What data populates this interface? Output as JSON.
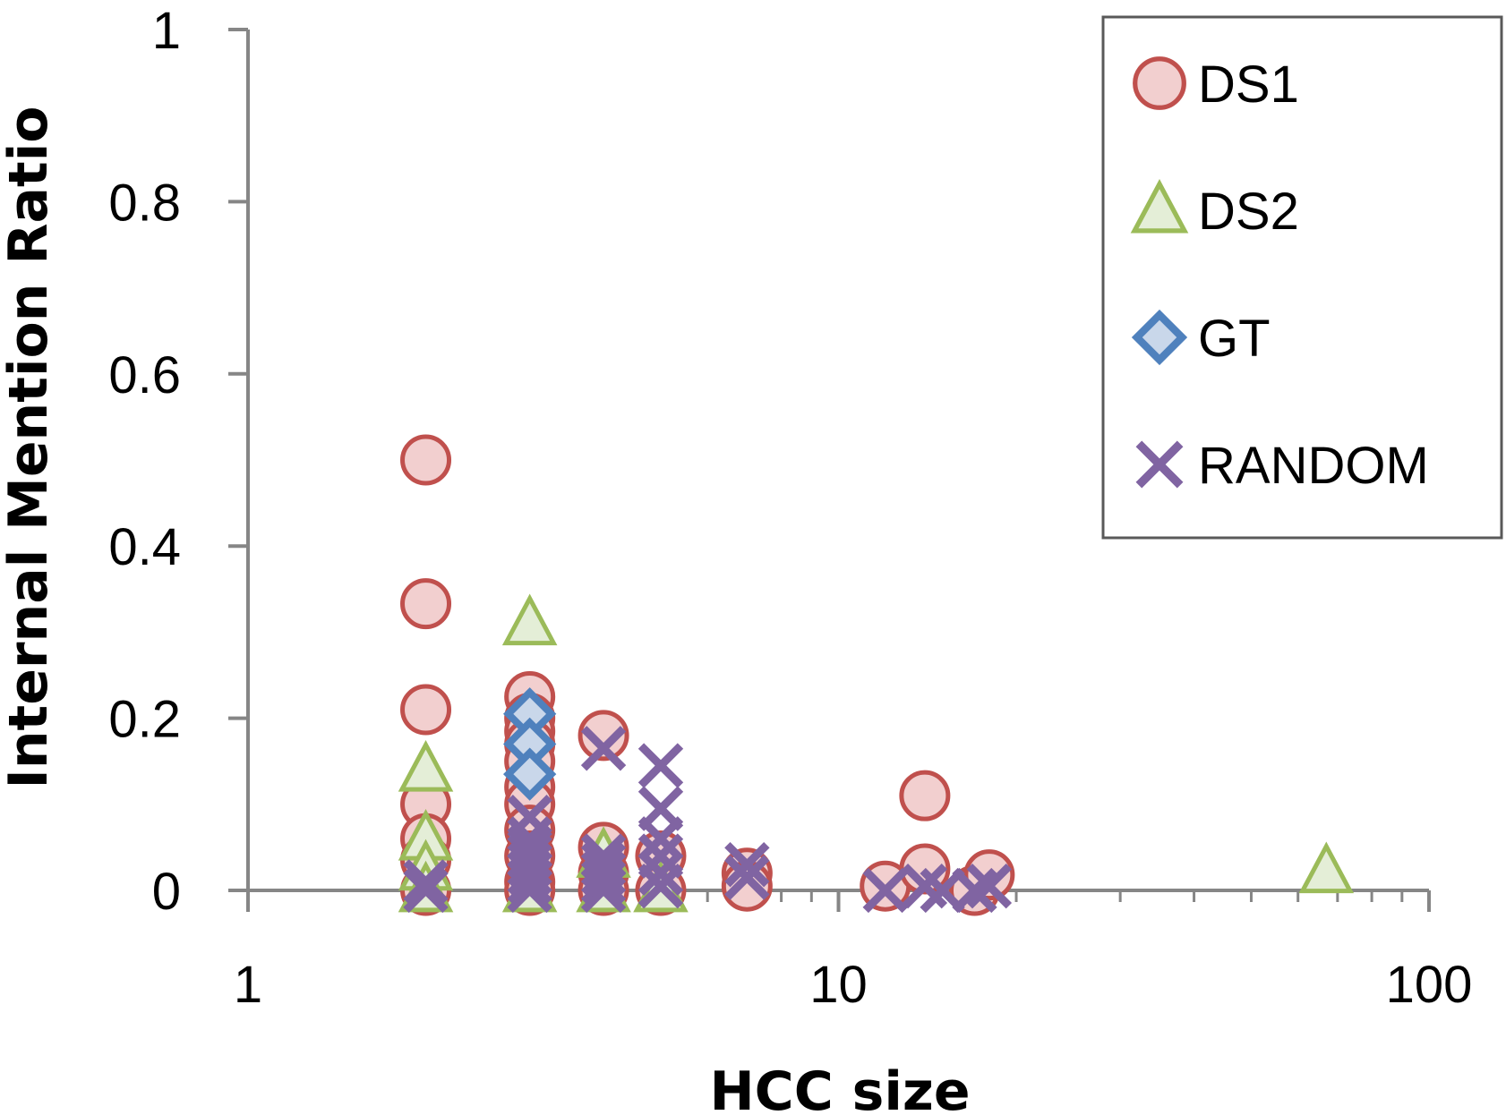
{
  "chart_data": {
    "type": "scatter",
    "title": "",
    "xlabel": "HCC size",
    "ylabel": "Internal Mention Ratio",
    "xscale": "log",
    "xlim": [
      1,
      100
    ],
    "ylim": [
      0,
      1
    ],
    "xticks": [
      1,
      10,
      100
    ],
    "xtick_labels": [
      "1",
      "10",
      "100"
    ],
    "yticks": [
      0,
      0.2,
      0.4,
      0.6,
      0.8,
      1
    ],
    "ytick_labels": [
      "0",
      "0.2",
      "0.4",
      "0.6",
      "0.8",
      "1"
    ],
    "grid": false,
    "legend_position": "top-right",
    "series": [
      {
        "name": "DS1",
        "marker": "circle",
        "stroke": "#C0504D",
        "fill": "#F2CFCF",
        "points": [
          [
            2,
            0.5
          ],
          [
            2,
            0.333
          ],
          [
            2,
            0.21
          ],
          [
            2,
            0.1
          ],
          [
            2,
            0.06
          ],
          [
            2,
            0.035
          ],
          [
            2,
            0.0
          ],
          [
            3,
            0.225
          ],
          [
            3,
            0.2
          ],
          [
            3,
            0.185
          ],
          [
            3,
            0.17
          ],
          [
            3,
            0.15
          ],
          [
            3,
            0.12
          ],
          [
            3,
            0.1
          ],
          [
            3,
            0.07
          ],
          [
            3,
            0.04
          ],
          [
            3,
            0.01
          ],
          [
            3,
            0.0
          ],
          [
            4,
            0.18
          ],
          [
            4,
            0.05
          ],
          [
            4,
            0.02
          ],
          [
            4,
            0.0
          ],
          [
            5,
            0.04
          ],
          [
            5,
            0.0
          ],
          [
            7,
            0.02
          ],
          [
            7,
            0.005
          ],
          [
            12,
            0.005
          ],
          [
            14,
            0.11
          ],
          [
            14,
            0.025
          ],
          [
            17,
            0.0
          ],
          [
            18,
            0.018
          ]
        ]
      },
      {
        "name": "DS2",
        "marker": "triangle",
        "stroke": "#9BBB59",
        "fill": "#E4EED7",
        "points": [
          [
            2,
            0.14
          ],
          [
            2,
            0.06
          ],
          [
            2,
            0.025
          ],
          [
            2,
            0.0
          ],
          [
            3,
            0.31
          ],
          [
            3,
            0.0
          ],
          [
            4,
            0.04
          ],
          [
            4,
            0.0
          ],
          [
            5,
            0.0
          ],
          [
            67,
            0.022
          ]
        ]
      },
      {
        "name": "GT",
        "marker": "diamond",
        "stroke": "#4F81BD",
        "fill": "#C9D7EA",
        "points": [
          [
            3,
            0.205
          ],
          [
            3,
            0.17
          ],
          [
            3,
            0.135
          ]
        ]
      },
      {
        "name": "RANDOM",
        "marker": "x",
        "stroke": "#8064A2",
        "fill": "none",
        "points": [
          [
            2,
            0.0
          ],
          [
            2,
            0.01
          ],
          [
            3,
            0.085
          ],
          [
            3,
            0.06
          ],
          [
            3,
            0.05
          ],
          [
            3,
            0.04
          ],
          [
            3,
            0.03
          ],
          [
            3,
            0.02
          ],
          [
            3,
            0.01
          ],
          [
            3,
            0.0
          ],
          [
            4,
            0.165
          ],
          [
            4,
            0.04
          ],
          [
            4,
            0.03
          ],
          [
            4,
            0.02
          ],
          [
            4,
            0.01
          ],
          [
            4,
            0.0
          ],
          [
            5,
            0.145
          ],
          [
            5,
            0.095
          ],
          [
            5,
            0.06
          ],
          [
            5,
            0.04
          ],
          [
            5,
            0.02
          ],
          [
            5,
            0.005
          ],
          [
            7,
            0.03
          ],
          [
            7,
            0.015
          ],
          [
            12,
            0.0
          ],
          [
            14,
            0.005
          ],
          [
            15,
            0.0
          ],
          [
            17,
            0.0
          ],
          [
            18,
            0.005
          ]
        ]
      }
    ]
  }
}
